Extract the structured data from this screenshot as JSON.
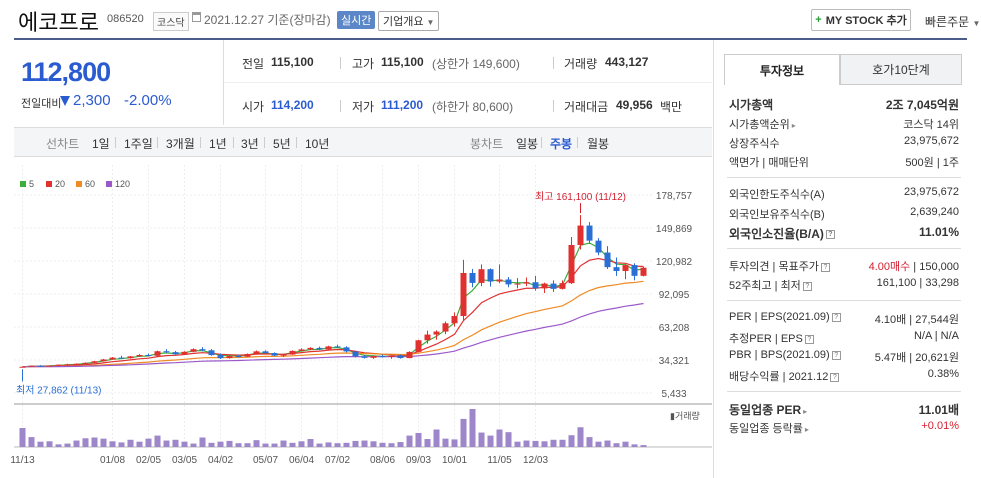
{
  "header": {
    "title": "에코프로",
    "code": "086520",
    "market": "코스닥",
    "date": "2021.12.27 기준(장마감)",
    "realtime": "실시간",
    "company_info": "기업개요",
    "mystock": "MY STOCK 추가",
    "quick_order": "빠른주문"
  },
  "price": {
    "current": "112,800",
    "change_label": "전일대비",
    "change": "2,300",
    "change_pct": "-2.00%",
    "color_down": "#2a5bd0"
  },
  "quote": {
    "prev_label": "전일",
    "prev": "115,100",
    "high_label": "고가",
    "high": "115,100",
    "upper_limit": "(상한가 149,600)",
    "volume_label": "거래량",
    "volume": "443,127",
    "open_label": "시가",
    "open": "114,200",
    "low_label": "저가",
    "low": "111,200",
    "lower_limit": "(하한가 80,600)",
    "amount_label": "거래대금",
    "amount": "49,956",
    "amount_unit": "백만"
  },
  "periods": {
    "line_label": "선차트",
    "line_items": [
      "1일",
      "1주일",
      "3개월",
      "1년",
      "3년",
      "5년",
      "10년"
    ],
    "candle_label": "봉차트",
    "candle_items": [
      "일봉",
      "주봉",
      "월봉"
    ],
    "candle_selected": "주봉"
  },
  "chart_data": {
    "type": "line",
    "legend": [
      "5",
      "20",
      "60",
      "120"
    ],
    "legend_colors": [
      "#3cae3c",
      "#e0302f",
      "#f08a24",
      "#9b59c9"
    ],
    "y_ticks": [
      "178,757",
      "149,869",
      "120,982",
      "92,095",
      "63,208",
      "34,321",
      "5,433"
    ],
    "x_ticks": [
      "11/13",
      "01/08",
      "02/05",
      "03/05",
      "04/02",
      "05/07",
      "06/04",
      "07/02",
      "08/06",
      "09/03",
      "10/01",
      "11/05",
      "12/03"
    ],
    "high_annotation": "최고 161,100 (11/12)",
    "low_annotation": "최저 27,862 (11/13)",
    "volume_label": "거래량",
    "candles": [
      [
        28000,
        28500,
        27862,
        28400
      ],
      [
        28400,
        29500,
        28200,
        29300
      ],
      [
        29300,
        29800,
        28900,
        29100
      ],
      [
        29100,
        29600,
        28700,
        29400
      ],
      [
        29400,
        30400,
        29200,
        30200
      ],
      [
        30200,
        31000,
        29900,
        30600
      ],
      [
        30600,
        31400,
        30200,
        31000
      ],
      [
        31000,
        32200,
        30800,
        31900
      ],
      [
        31900,
        33500,
        31500,
        33200
      ],
      [
        33200,
        35200,
        32900,
        34800
      ],
      [
        34800,
        37000,
        34500,
        36400
      ],
      [
        36400,
        38000,
        35400,
        35900
      ],
      [
        35900,
        37800,
        35500,
        37500
      ],
      [
        37500,
        39500,
        37000,
        38700
      ],
      [
        38700,
        40000,
        37600,
        38000
      ],
      [
        38000,
        42500,
        37800,
        42000
      ],
      [
        42000,
        43800,
        40500,
        41200
      ],
      [
        41200,
        42200,
        38800,
        39300
      ],
      [
        39300,
        42000,
        39000,
        41500
      ],
      [
        41500,
        44500,
        41200,
        43800
      ],
      [
        43800,
        45500,
        42000,
        42800
      ],
      [
        42800,
        43800,
        38000,
        38600
      ],
      [
        38600,
        40000,
        35200,
        36000
      ],
      [
        36000,
        38500,
        35500,
        37800
      ],
      [
        37800,
        38800,
        36600,
        37200
      ],
      [
        37200,
        40000,
        36900,
        39600
      ],
      [
        39600,
        42600,
        39400,
        41900
      ],
      [
        41900,
        42800,
        40000,
        40400
      ],
      [
        40400,
        41000,
        37800,
        38200
      ],
      [
        38200,
        39600,
        37000,
        39100
      ],
      [
        39100,
        42800,
        38800,
        42300
      ],
      [
        42300,
        44600,
        41800,
        43600
      ],
      [
        43600,
        45500,
        43000,
        44900
      ],
      [
        44900,
        46000,
        43000,
        43600
      ],
      [
        43600,
        46800,
        43200,
        46200
      ],
      [
        46200,
        47800,
        44800,
        45400
      ],
      [
        45400,
        46400,
        41000,
        41800
      ],
      [
        41800,
        42600,
        36600,
        37400
      ],
      [
        37400,
        38600,
        35600,
        36200
      ],
      [
        36200,
        38000,
        35400,
        37700
      ],
      [
        37700,
        39000,
        36600,
        37000
      ],
      [
        37000,
        38600,
        35400,
        38200
      ],
      [
        38200,
        39000,
        35500,
        36000
      ],
      [
        36000,
        42000,
        35800,
        41400
      ],
      [
        41400,
        52000,
        41000,
        51600
      ],
      [
        51600,
        60000,
        48600,
        56600
      ],
      [
        56600,
        60200,
        52000,
        59200
      ],
      [
        59200,
        68000,
        57000,
        66500
      ],
      [
        66500,
        76000,
        63500,
        72800
      ],
      [
        72800,
        122000,
        69000,
        110500
      ],
      [
        110500,
        114000,
        98000,
        101800
      ],
      [
        101800,
        118000,
        99000,
        113800
      ],
      [
        113800,
        114500,
        98500,
        103000
      ],
      [
        103000,
        118000,
        101500,
        104800
      ],
      [
        104800,
        107000,
        98000,
        100500
      ],
      [
        100500,
        106000,
        97000,
        101200
      ],
      [
        101200,
        106500,
        99000,
        102400
      ],
      [
        102400,
        108000,
        95000,
        97000
      ],
      [
        97000,
        102000,
        93000,
        101200
      ],
      [
        101200,
        104000,
        94000,
        96600
      ],
      [
        96600,
        104000,
        96000,
        101600
      ],
      [
        101600,
        142000,
        101000,
        135000
      ],
      [
        135000,
        161100,
        131000,
        152000
      ],
      [
        152000,
        155000,
        136000,
        138800
      ],
      [
        138800,
        141000,
        126000,
        128400
      ],
      [
        128400,
        134000,
        114000,
        115600
      ],
      [
        115600,
        124000,
        108000,
        112200
      ],
      [
        112200,
        118000,
        105000,
        117400
      ],
      [
        117400,
        119000,
        104000,
        108000
      ],
      [
        108000,
        116000,
        107500,
        115100
      ]
    ],
    "volumes": [
      0.5,
      0.26,
      0.14,
      0.15,
      0.07,
      0.09,
      0.17,
      0.23,
      0.25,
      0.22,
      0.15,
      0.12,
      0.19,
      0.14,
      0.22,
      0.3,
      0.17,
      0.19,
      0.14,
      0.09,
      0.25,
      0.11,
      0.14,
      0.16,
      0.1,
      0.1,
      0.18,
      0.09,
      0.09,
      0.17,
      0.11,
      0.15,
      0.21,
      0.09,
      0.12,
      0.1,
      0.11,
      0.16,
      0.17,
      0.15,
      0.11,
      0.1,
      0.13,
      0.3,
      0.37,
      0.21,
      0.46,
      0.22,
      0.2,
      0.74,
      1.0,
      0.38,
      0.3,
      0.46,
      0.39,
      0.14,
      0.17,
      0.16,
      0.15,
      0.19,
      0.19,
      0.31,
      0.52,
      0.26,
      0.14,
      0.17,
      0.1,
      0.14,
      0.07,
      0.05
    ]
  },
  "right_panel": {
    "tab_invest": "투자정보",
    "tab_ask": "호가10단계",
    "market_cap_label": "시가총액",
    "market_cap": "2조 7,045억원",
    "cap_rank_label": "시가총액순위",
    "cap_rank": "코스닥 14위",
    "shares_label": "상장주식수",
    "shares": "23,975,672",
    "par_label": "액면가 | 매매단위",
    "par": "500원 | 1주",
    "foreign_limit_label": "외국인한도주식수(A)",
    "foreign_limit": "23,975,672",
    "foreign_hold_label": "외국인보유주식수(B)",
    "foreign_hold": "2,639,240",
    "foreign_ratio_label": "외국인소진율(B/A)",
    "foreign_ratio": "11.01%",
    "opinion_label": "투자의견 | 목표주가",
    "opinion": "4.00매수",
    "target": "150,000",
    "w52_label": "52주최고 | 최저",
    "w52_high": "161,100",
    "w52_low": "33,298",
    "per_label": "PER | EPS(2021.09)",
    "per": "4.10배",
    "eps": "27,544원",
    "est_label": "추정PER | EPS",
    "est_per": "N/A",
    "est_eps": "N/A",
    "pbr_label": "PBR | BPS(2021.09)",
    "pbr": "5.47배",
    "bps": "20,621원",
    "div_label": "배당수익률 | 2021.12",
    "div": "0.38%",
    "sector_per_label": "동일업종 PER",
    "sector_per": "11.01배",
    "sector_chg_label": "동일업종 등락률",
    "sector_chg": "+0.01%"
  }
}
